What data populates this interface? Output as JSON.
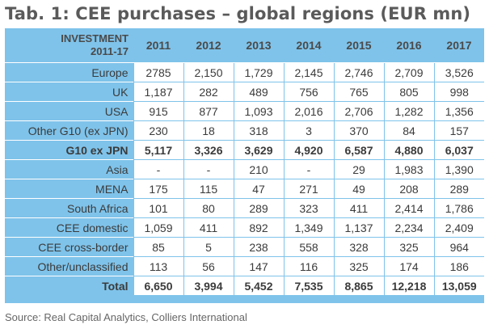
{
  "title": "Tab. 1: CEE purchases – global regions (EUR mn)",
  "header": {
    "label_line1": "INVESTMENT",
    "label_line2": "2011-17",
    "years": [
      "2011",
      "2012",
      "2013",
      "2014",
      "2015",
      "2016",
      "2017"
    ]
  },
  "rows": [
    {
      "label": "Europe",
      "values": [
        "2785",
        "2,150",
        "1,729",
        "2,145",
        "2,746",
        "2,709",
        "3,526"
      ]
    },
    {
      "label": "UK",
      "values": [
        "1,187",
        "282",
        "489",
        "756",
        "765",
        "805",
        "998"
      ]
    },
    {
      "label": "USA",
      "values": [
        "915",
        "877",
        "1,093",
        "2,016",
        "2,706",
        "1,282",
        "1,356"
      ]
    },
    {
      "label": "Other G10 (ex JPN)",
      "values": [
        "230",
        "18",
        "318",
        "3",
        "370",
        "84",
        "157"
      ]
    },
    {
      "label": "G10 ex JPN",
      "values": [
        "5,117",
        "3,326",
        "3,629",
        "4,920",
        "6,587",
        "4,880",
        "6,037"
      ]
    },
    {
      "label": "Asia",
      "values": [
        "-",
        "-",
        "210",
        "-",
        "29",
        "1,983",
        "1,390"
      ]
    },
    {
      "label": "MENA",
      "values": [
        "175",
        "115",
        "47",
        "271",
        "49",
        "208",
        "289"
      ]
    },
    {
      "label": "South Africa",
      "values": [
        "101",
        "80",
        "289",
        "323",
        "411",
        "2,414",
        "1,786"
      ]
    },
    {
      "label": "CEE domestic",
      "values": [
        "1,059",
        "411",
        "892",
        "1,349",
        "1,137",
        "2,234",
        "2,409"
      ]
    },
    {
      "label": "CEE cross-border",
      "values": [
        "85",
        "5",
        "238",
        "558",
        "328",
        "325",
        "964"
      ]
    },
    {
      "label": "Other/unclassified",
      "values": [
        "113",
        "56",
        "147",
        "116",
        "325",
        "174",
        "186"
      ]
    },
    {
      "label": "Total",
      "values": [
        "6,650",
        "3,994",
        "5,452",
        "7,535",
        "8,865",
        "12,218",
        "13,059"
      ]
    }
  ],
  "source": "Source: Real Capital Analytics, Colliers International",
  "colors": {
    "header_bg": "#7fc3ea",
    "title": "#5a5a5a"
  }
}
